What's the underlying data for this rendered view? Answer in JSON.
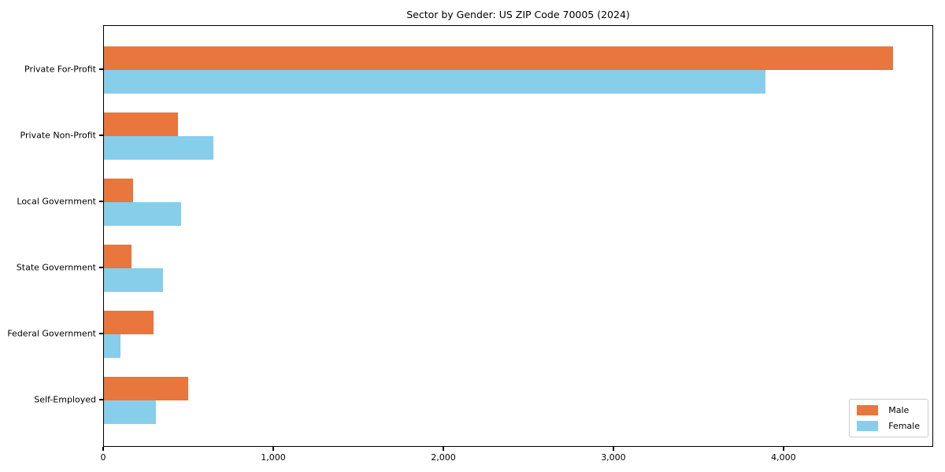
{
  "chart_data": {
    "type": "bar",
    "orientation": "horizontal",
    "title": "Sector by Gender: US ZIP Code 70005 (2024)",
    "categories": [
      "Private For-Profit",
      "Private Non-Profit",
      "Local Government",
      "State Government",
      "Federal Government",
      "Self-Employed"
    ],
    "series": [
      {
        "name": "Male",
        "color": "#e8763d",
        "values": [
          4640,
          435,
          170,
          160,
          290,
          495
        ]
      },
      {
        "name": "Female",
        "color": "#87ceeb",
        "values": [
          3890,
          645,
          455,
          345,
          95,
          305
        ]
      }
    ],
    "xlabel": "",
    "ylabel": "",
    "xlim": [
      0,
      4880
    ],
    "xticks": [
      0,
      1000,
      2000,
      3000,
      4000
    ],
    "xtick_labels": [
      "0",
      "1,000",
      "2,000",
      "3,000",
      "4,000"
    ],
    "grid": false,
    "legend": {
      "position": "lower right",
      "entries": [
        "Male",
        "Female"
      ]
    }
  },
  "colors": {
    "male": "#e8763d",
    "female": "#87ceeb",
    "spine": "#000000",
    "background": "#ffffff"
  }
}
